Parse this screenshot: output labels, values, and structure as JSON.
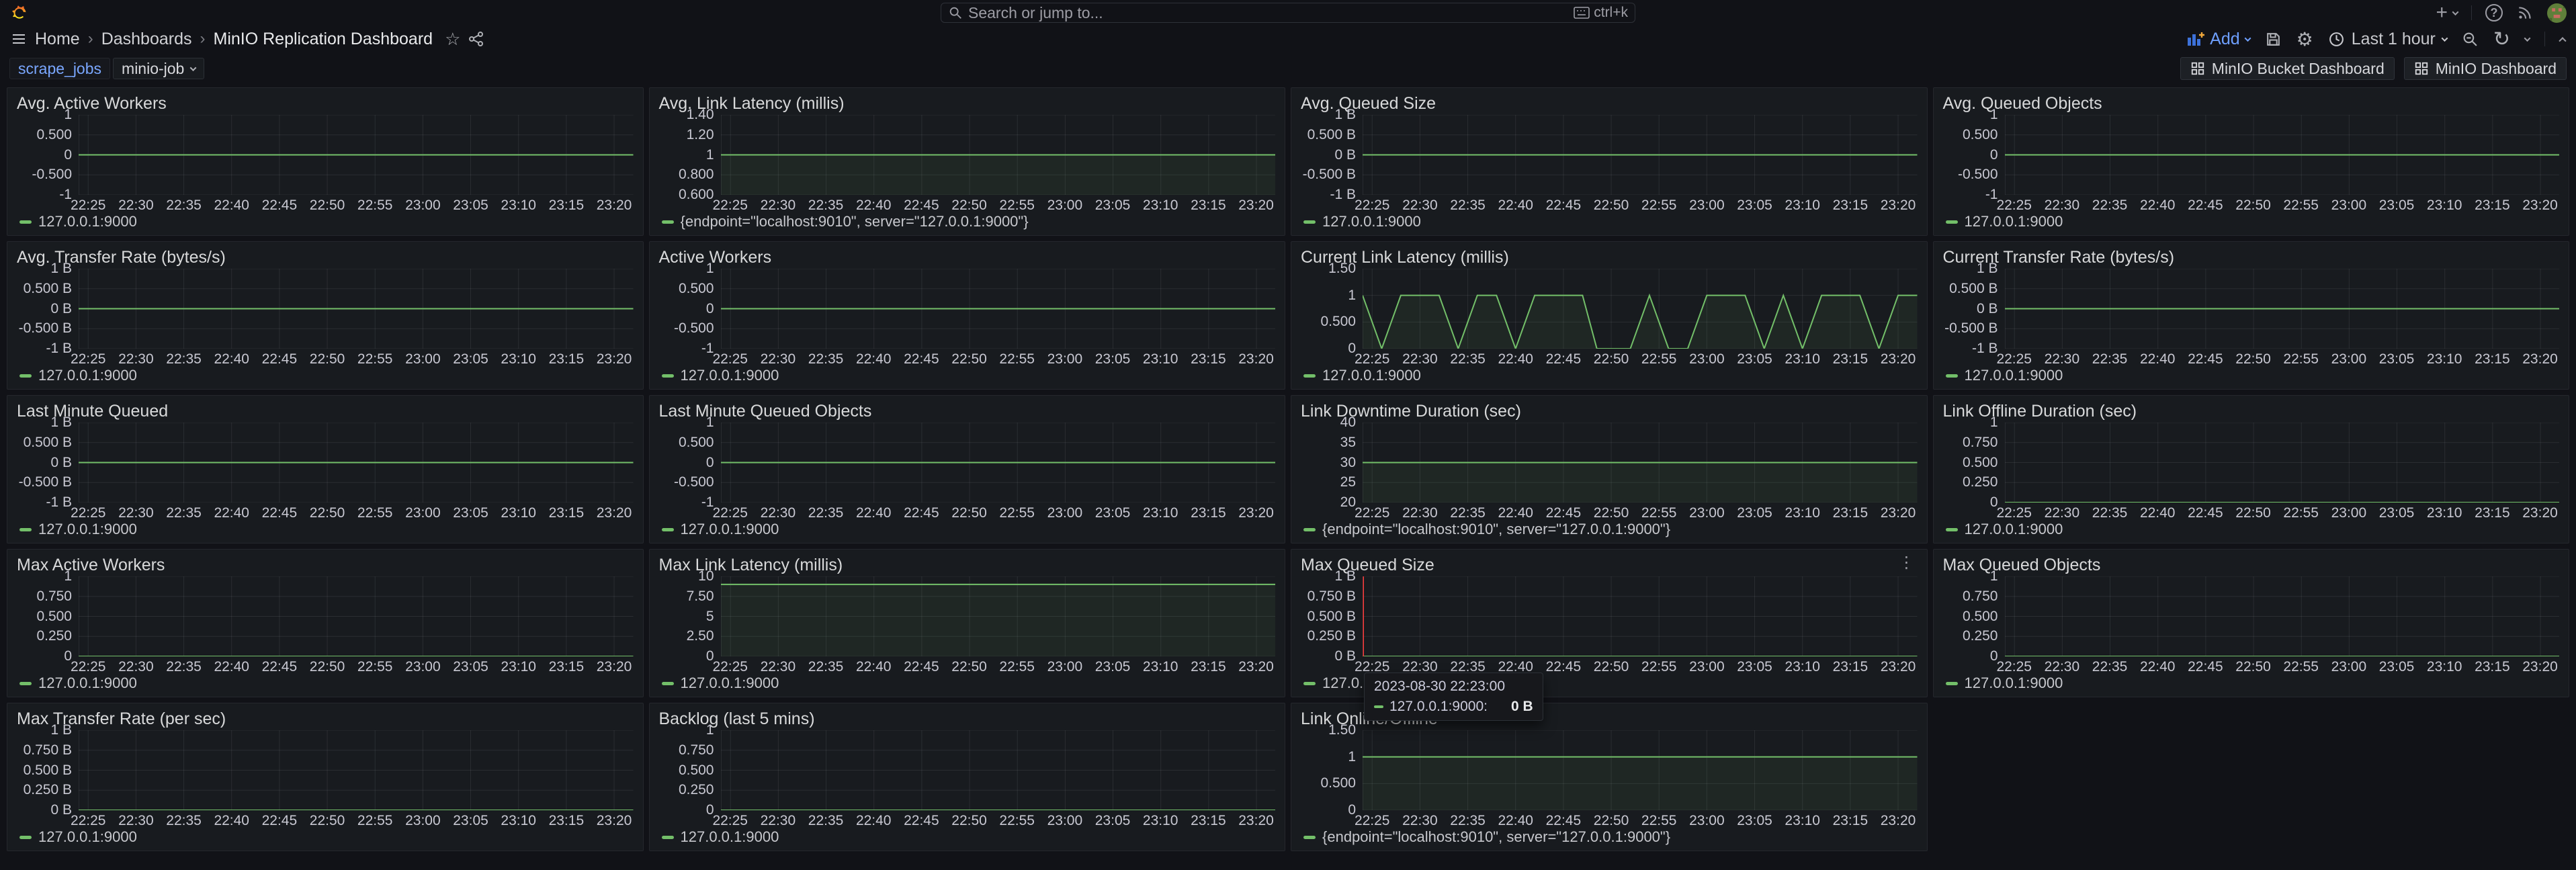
{
  "topbar": {
    "search_placeholder": "Search or jump to...",
    "search_shortcut": "ctrl+k"
  },
  "breadcrumb": {
    "items": [
      "Home",
      "Dashboards",
      "MinIO Replication Dashboard"
    ]
  },
  "toolbar": {
    "add_label": "Add",
    "time_range": "Last 1 hour"
  },
  "variables": {
    "label": "scrape_jobs",
    "value": "minio-job"
  },
  "links": [
    "MinIO Bucket Dashboard",
    "MinIO Dashboard"
  ],
  "colors": {
    "green": "#73bf69",
    "green_fill": "rgba(115,191,105,0.08)",
    "blue": "#3d71d9",
    "accent_blue": "#6e9fff",
    "red_crosshair": "#ff3b3b",
    "grid": "rgba(204,204,220,0.10)"
  },
  "time_axis": {
    "ticks": [
      "22:25",
      "22:30",
      "22:35",
      "22:40",
      "22:45",
      "22:50",
      "22:55",
      "23:00",
      "23:05",
      "23:10",
      "23:15",
      "23:20"
    ],
    "tick_minutes": [
      1,
      6,
      11,
      16,
      21,
      26,
      31,
      36,
      41,
      46,
      51,
      56
    ],
    "domain_minutes": [
      0,
      58
    ]
  },
  "chart_data": [
    {
      "type": "line",
      "title": "Avg. Active Workers",
      "ylim": [
        -1,
        1
      ],
      "y_ticks": [
        "1",
        "0.500",
        "0",
        "-0.500",
        "-1"
      ],
      "series": [
        {
          "name": "127.0.0.1:9000",
          "points": [
            [
              0,
              0
            ],
            [
              58,
              0
            ]
          ]
        }
      ]
    },
    {
      "type": "line",
      "title": "Avg. Link Latency (millis)",
      "ylim": [
        0.6,
        1.4
      ],
      "y_ticks": [
        "1.40",
        "1.20",
        "1",
        "0.800",
        "0.600"
      ],
      "series": [
        {
          "name": "{endpoint=\"localhost:9010\", server=\"127.0.0.1:9000\"}",
          "points": [
            [
              0,
              1
            ],
            [
              58,
              1
            ]
          ]
        }
      ]
    },
    {
      "type": "line",
      "title": "Avg. Queued Size",
      "ylim": [
        -1,
        1
      ],
      "y_ticks": [
        "1 B",
        "0.500 B",
        "0 B",
        "-0.500 B",
        "-1 B"
      ],
      "series": [
        {
          "name": "127.0.0.1:9000",
          "points": [
            [
              0,
              0
            ],
            [
              58,
              0
            ]
          ]
        }
      ]
    },
    {
      "type": "line",
      "title": "Avg. Queued Objects",
      "ylim": [
        -1,
        1
      ],
      "y_ticks": [
        "1",
        "0.500",
        "0",
        "-0.500",
        "-1"
      ],
      "series": [
        {
          "name": "127.0.0.1:9000",
          "points": [
            [
              0,
              0
            ],
            [
              58,
              0
            ]
          ]
        }
      ]
    },
    {
      "type": "line",
      "title": "Avg. Transfer Rate (bytes/s)",
      "ylim": [
        -1,
        1
      ],
      "y_ticks": [
        "1 B",
        "0.500 B",
        "0 B",
        "-0.500 B",
        "-1 B"
      ],
      "series": [
        {
          "name": "127.0.0.1:9000",
          "points": [
            [
              0,
              0
            ],
            [
              58,
              0
            ]
          ]
        }
      ]
    },
    {
      "type": "line",
      "title": "Active Workers",
      "ylim": [
        -1,
        1
      ],
      "y_ticks": [
        "1",
        "0.500",
        "0",
        "-0.500",
        "-1"
      ],
      "series": [
        {
          "name": "127.0.0.1:9000",
          "points": [
            [
              0,
              0
            ],
            [
              58,
              0
            ]
          ]
        }
      ]
    },
    {
      "type": "line",
      "title": "Current Link Latency (millis)",
      "ylim": [
        0,
        1.5
      ],
      "y_ticks": [
        "1.50",
        "1",
        "0.500",
        "0"
      ],
      "series": [
        {
          "name": "127.0.0.1:9000",
          "points": [
            [
              0,
              1
            ],
            [
              2,
              0
            ],
            [
              4,
              1
            ],
            [
              8,
              1
            ],
            [
              10,
              0
            ],
            [
              12,
              1
            ],
            [
              14,
              1
            ],
            [
              16,
              0
            ],
            [
              18,
              1
            ],
            [
              23,
              1
            ],
            [
              24.5,
              0
            ],
            [
              28,
              0
            ],
            [
              30,
              1
            ],
            [
              32,
              0
            ],
            [
              34,
              0
            ],
            [
              36,
              1
            ],
            [
              40,
              1
            ],
            [
              42,
              0
            ],
            [
              44,
              1
            ],
            [
              46,
              0
            ],
            [
              48,
              1
            ],
            [
              52,
              1
            ],
            [
              54,
              0
            ],
            [
              56,
              1
            ],
            [
              58,
              1
            ]
          ]
        }
      ]
    },
    {
      "type": "line",
      "title": "Current Transfer Rate (bytes/s)",
      "ylim": [
        -1,
        1
      ],
      "y_ticks": [
        "1 B",
        "0.500 B",
        "0 B",
        "-0.500 B",
        "-1 B"
      ],
      "series": [
        {
          "name": "127.0.0.1:9000",
          "points": [
            [
              0,
              0
            ],
            [
              58,
              0
            ]
          ]
        }
      ]
    },
    {
      "type": "line",
      "title": "Last Minute Queued",
      "ylim": [
        -1,
        1
      ],
      "y_ticks": [
        "1 B",
        "0.500 B",
        "0 B",
        "-0.500 B",
        "-1 B"
      ],
      "series": [
        {
          "name": "127.0.0.1:9000",
          "points": [
            [
              0,
              0
            ],
            [
              58,
              0
            ]
          ]
        }
      ]
    },
    {
      "type": "line",
      "title": "Last Minute Queued Objects",
      "ylim": [
        -1,
        1
      ],
      "y_ticks": [
        "1",
        "0.500",
        "0",
        "-0.500",
        "-1"
      ],
      "series": [
        {
          "name": "127.0.0.1:9000",
          "points": [
            [
              0,
              0
            ],
            [
              58,
              0
            ]
          ]
        }
      ]
    },
    {
      "type": "line",
      "title": "Link Downtime Duration (sec)",
      "ylim": [
        20,
        40
      ],
      "y_ticks": [
        "40",
        "35",
        "30",
        "25",
        "20"
      ],
      "series": [
        {
          "name": "{endpoint=\"localhost:9010\", server=\"127.0.0.1:9000\"}",
          "points": [
            [
              0,
              30
            ],
            [
              58,
              30
            ]
          ]
        }
      ]
    },
    {
      "type": "line",
      "title": "Link Offline Duration (sec)",
      "ylim": [
        0,
        1
      ],
      "y_ticks": [
        "1",
        "0.750",
        "0.500",
        "0.250",
        "0"
      ],
      "series": [
        {
          "name": "127.0.0.1:9000",
          "points": [
            [
              0,
              0
            ],
            [
              58,
              0
            ]
          ]
        }
      ]
    },
    {
      "type": "line",
      "title": "Max Active Workers",
      "ylim": [
        0,
        1
      ],
      "y_ticks": [
        "1",
        "0.750",
        "0.500",
        "0.250",
        "0"
      ],
      "series": [
        {
          "name": "127.0.0.1:9000",
          "points": [
            [
              0,
              0
            ],
            [
              58,
              0
            ]
          ]
        }
      ]
    },
    {
      "type": "line",
      "title": "Max Link Latency (millis)",
      "ylim": [
        0,
        10
      ],
      "y_ticks": [
        "10",
        "7.50",
        "5",
        "2.50",
        "0"
      ],
      "series": [
        {
          "name": "127.0.0.1:9000",
          "points": [
            [
              0,
              9
            ],
            [
              58,
              9
            ]
          ]
        }
      ]
    },
    {
      "type": "line",
      "title": "Max Queued Size",
      "ylim": [
        0,
        1
      ],
      "y_ticks": [
        "1 B",
        "0.750 B",
        "0.500 B",
        "0.250 B",
        "0 B"
      ],
      "series": [
        {
          "name": "127.0.0.1:9000",
          "points": [
            [
              0,
              0
            ],
            [
              58,
              0
            ]
          ]
        }
      ],
      "menu_visible": true,
      "crosshair_minute": 0,
      "tooltip": {
        "time": "2023-08-30 22:23:00",
        "series": "127.0.0.1:9000:",
        "value": "0 B"
      }
    },
    {
      "type": "line",
      "title": "Max Queued Objects",
      "ylim": [
        0,
        1
      ],
      "y_ticks": [
        "1",
        "0.750",
        "0.500",
        "0.250",
        "0"
      ],
      "series": [
        {
          "name": "127.0.0.1:9000",
          "points": [
            [
              0,
              0
            ],
            [
              58,
              0
            ]
          ]
        }
      ]
    },
    {
      "type": "line",
      "title": "Max Transfer Rate (per sec)",
      "ylim": [
        0,
        1
      ],
      "y_ticks": [
        "1 B",
        "0.750 B",
        "0.500 B",
        "0.250 B",
        "0 B"
      ],
      "series": [
        {
          "name": "127.0.0.1:9000",
          "points": [
            [
              0,
              0
            ],
            [
              58,
              0
            ]
          ]
        }
      ]
    },
    {
      "type": "line",
      "title": "Backlog (last 5 mins)",
      "ylim": [
        0,
        1
      ],
      "y_ticks": [
        "1",
        "0.750",
        "0.500",
        "0.250",
        "0"
      ],
      "series": [
        {
          "name": "127.0.0.1:9000",
          "points": [
            [
              0,
              0
            ],
            [
              58,
              0
            ]
          ]
        }
      ]
    },
    {
      "type": "line",
      "title": "Link Online/Offline",
      "ylim": [
        0,
        1.5
      ],
      "y_ticks": [
        "1.50",
        "1",
        "0.500",
        "0"
      ],
      "series": [
        {
          "name": "{endpoint=\"localhost:9010\", server=\"127.0.0.1:9000\"}",
          "points": [
            [
              0,
              1
            ],
            [
              58,
              1
            ]
          ]
        }
      ]
    }
  ]
}
